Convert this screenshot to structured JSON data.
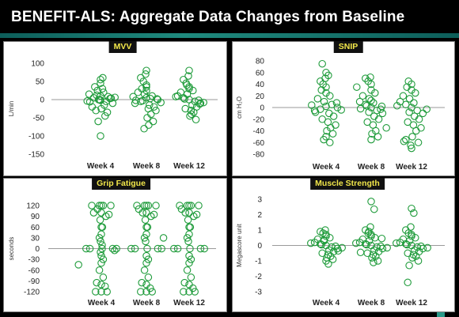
{
  "page_title": "BENEFIT-ALS: Aggregate Data Changes from Baseline",
  "colors": {
    "marker": "#1e9b3a",
    "panel_title_text": "#f1e64a",
    "header_bg": "#000000"
  },
  "chart_data": [
    {
      "type": "scatter",
      "title": "MVV",
      "ylabel": "L/min",
      "ylim": [
        -150,
        100
      ],
      "yticks": [
        100,
        50,
        0,
        -50,
        -100,
        -150
      ],
      "categories": [
        "Week 4",
        "Week 8",
        "Week 12"
      ],
      "series": [
        {
          "week": "Week 4",
          "x": [
            0.0,
            -0.18,
            0.15,
            -0.3,
            0.32,
            -0.05,
            0.08,
            -0.22,
            0.2,
            0.1,
            -0.1,
            0.0,
            0.05,
            -0.12,
            0.25,
            -0.35,
            0.38,
            0.0,
            0.12,
            -0.08,
            0.02,
            -0.15,
            0.18,
            -0.02,
            0.0,
            0.06,
            -0.06,
            0.28,
            -0.28,
            0.0
          ],
          "y": [
            10,
            5,
            -5,
            15,
            -10,
            0,
            20,
            -20,
            8,
            -15,
            12,
            -2,
            30,
            -30,
            3,
            -4,
            6,
            45,
            -45,
            25,
            -25,
            35,
            -35,
            0,
            55,
            60,
            -60,
            4,
            -6,
            -100
          ]
        },
        {
          "week": "Week 8",
          "x": [
            0.0,
            -0.15,
            0.15,
            -0.3,
            0.3,
            -0.05,
            0.08,
            -0.22,
            0.2,
            0.1,
            -0.1,
            0.0,
            0.05,
            -0.12,
            0.25,
            -0.35,
            0.38,
            0.0,
            0.12,
            -0.08,
            0.02,
            -0.15,
            0.18,
            -0.02,
            0.0,
            0.06,
            -0.06,
            0.28,
            -0.28,
            0.0
          ],
          "y": [
            5,
            -5,
            10,
            -10,
            0,
            15,
            -15,
            20,
            -20,
            3,
            -3,
            25,
            -25,
            30,
            -30,
            8,
            -8,
            40,
            -40,
            50,
            -50,
            60,
            -60,
            70,
            80,
            -70,
            -80,
            2,
            -2,
            35
          ]
        },
        {
          "week": "Week 12",
          "x": [
            0.0,
            -0.15,
            0.15,
            -0.3,
            0.3,
            -0.05,
            0.08,
            -0.22,
            0.2,
            0.1,
            -0.1,
            0.0,
            0.05,
            -0.12,
            0.25,
            -0.35,
            0.38,
            0.0,
            0.12,
            -0.08,
            0.02,
            -0.15,
            0.18,
            -0.02,
            0.0,
            0.06,
            -0.06,
            0.28
          ],
          "y": [
            0,
            5,
            -5,
            10,
            -10,
            15,
            -15,
            20,
            -20,
            25,
            -25,
            30,
            -30,
            2,
            -2,
            8,
            -8,
            35,
            -35,
            45,
            -45,
            55,
            -55,
            65,
            80,
            -40,
            40,
            -12
          ]
        }
      ],
      "grid": false
    },
    {
      "type": "scatter",
      "title": "SNIP",
      "ylabel": "cm H₂O",
      "ylim": [
        -80,
        80
      ],
      "yticks": [
        80,
        60,
        40,
        20,
        0,
        -20,
        -40,
        -60,
        -80
      ],
      "categories": [
        "Week 4",
        "Week 8",
        "Week 12"
      ],
      "series": [
        {
          "week": "Week 4",
          "x": [
            0.0,
            -0.15,
            0.15,
            -0.3,
            0.3,
            -0.05,
            0.08,
            -0.22,
            0.2,
            0.1,
            -0.1,
            0.0,
            0.05,
            -0.12,
            0.25,
            -0.38,
            0.4,
            0.0,
            0.12,
            -0.08,
            0.02,
            -0.15,
            0.18,
            -0.02,
            0.0,
            0.06,
            -0.06,
            0.28,
            -0.28,
            0.0,
            0.1,
            -0.1
          ],
          "y": [
            2,
            -3,
            5,
            -5,
            0,
            10,
            -10,
            15,
            -15,
            20,
            -20,
            25,
            -25,
            30,
            -30,
            4,
            -4,
            35,
            -35,
            40,
            -40,
            45,
            -45,
            50,
            -50,
            55,
            -55,
            8,
            -8,
            60,
            -60,
            75
          ]
        },
        {
          "week": "Week 8",
          "x": [
            0.0,
            -0.15,
            0.15,
            -0.3,
            0.3,
            -0.05,
            0.08,
            -0.22,
            0.2,
            0.1,
            -0.1,
            0.0,
            0.05,
            -0.12,
            0.25,
            -0.38,
            0.4,
            0.0,
            0.12,
            -0.08,
            0.02,
            -0.15,
            0.18,
            -0.02,
            0.0,
            0.06,
            -0.06,
            0.28,
            -0.28,
            0.0
          ],
          "y": [
            0,
            5,
            -5,
            10,
            -10,
            15,
            -15,
            20,
            -20,
            25,
            -25,
            30,
            -30,
            3,
            -3,
            35,
            -35,
            40,
            -40,
            45,
            -45,
            50,
            -50,
            52,
            -55,
            8,
            -8,
            2,
            -2,
            12
          ]
        },
        {
          "week": "Week 12",
          "x": [
            0.0,
            -0.15,
            0.15,
            -0.3,
            0.3,
            -0.05,
            0.08,
            -0.22,
            0.2,
            0.1,
            -0.1,
            0.0,
            0.05,
            -0.12,
            0.25,
            -0.38,
            0.4,
            0.0,
            0.12,
            -0.08,
            0.02,
            -0.15,
            0.18,
            -0.02,
            0.0,
            0.06,
            -0.06,
            -0.2
          ],
          "y": [
            0,
            5,
            -5,
            10,
            -10,
            15,
            -15,
            20,
            -20,
            25,
            -25,
            30,
            -30,
            35,
            -35,
            3,
            -3,
            40,
            -40,
            45,
            -50,
            -55,
            -60,
            -65,
            -70,
            8,
            -8,
            -58
          ]
        }
      ],
      "grid": false
    },
    {
      "type": "scatter",
      "title": "Grip Fatigue",
      "ylabel": "seconds",
      "ylim": [
        -120,
        120
      ],
      "yticks": [
        120,
        90,
        60,
        30,
        0,
        -30,
        -60,
        -90,
        -120
      ],
      "categories": [
        "Week 4",
        "Week 8",
        "Week 12"
      ],
      "series": [
        {
          "week": "Week 4",
          "x": [
            0.0,
            -0.05,
            0.05,
            0.0,
            -0.03,
            0.03,
            0.0,
            -0.02,
            0.02,
            0.0,
            0.0,
            -0.05,
            0.05,
            0.0,
            -0.3,
            0.3,
            -0.4,
            0.4,
            -0.25,
            0.25,
            -0.15,
            0.15,
            -0.6,
            0.0,
            -0.2,
            0.2,
            -0.1,
            0.1,
            -0.12,
            0.12,
            0.0,
            0.05,
            -0.05,
            0.02,
            -0.02,
            0.35
          ],
          "y": [
            120,
            120,
            120,
            100,
            80,
            60,
            40,
            20,
            0,
            -20,
            -40,
            -60,
            -80,
            -100,
            0,
            0,
            0,
            0,
            120,
            120,
            -120,
            -120,
            -45,
            -120,
            100,
            95,
            110,
            -105,
            -95,
            90,
            60,
            -30,
            30,
            10,
            -10,
            -5
          ]
        },
        {
          "week": "Week 8",
          "x": [
            0.0,
            -0.05,
            0.05,
            0.0,
            -0.03,
            0.03,
            0.0,
            -0.02,
            0.02,
            0.0,
            0.0,
            -0.05,
            0.05,
            0.0,
            -0.3,
            0.3,
            -0.4,
            0.4,
            -0.25,
            0.25,
            -0.15,
            0.15,
            0.0,
            -0.2,
            0.2,
            -0.1,
            0.1,
            -0.12,
            0.12,
            0.0,
            0.05,
            -0.05,
            0.45
          ],
          "y": [
            120,
            120,
            120,
            100,
            80,
            60,
            40,
            20,
            0,
            -20,
            -40,
            -60,
            -80,
            -100,
            0,
            0,
            0,
            0,
            120,
            120,
            -120,
            -120,
            -120,
            110,
            95,
            100,
            -110,
            -95,
            90,
            60,
            -30,
            30,
            30
          ]
        },
        {
          "week": "Week 12",
          "x": [
            0.0,
            -0.05,
            0.05,
            0.0,
            -0.03,
            0.03,
            0.0,
            -0.02,
            0.02,
            0.0,
            0.0,
            -0.05,
            0.05,
            0.0,
            -0.3,
            0.3,
            -0.4,
            0.4,
            -0.25,
            0.25,
            -0.15,
            0.15,
            0.0,
            -0.2,
            0.2,
            -0.1,
            0.1,
            -0.12,
            0.12,
            0.0,
            0.05,
            -0.05
          ],
          "y": [
            120,
            120,
            120,
            100,
            80,
            60,
            40,
            20,
            0,
            -20,
            -40,
            -60,
            -80,
            -100,
            0,
            0,
            0,
            0,
            120,
            120,
            -120,
            -120,
            -120,
            110,
            95,
            100,
            -110,
            -95,
            90,
            60,
            -30,
            30
          ]
        }
      ],
      "grid": false
    },
    {
      "type": "scatter",
      "title": "Muscle Strength",
      "ylabel": "Megascore unit",
      "ylim": [
        -3,
        3
      ],
      "yticks": [
        3,
        2,
        1,
        0,
        -1,
        -2,
        -3
      ],
      "categories": [
        "Week 4",
        "Week 8",
        "Week 12"
      ],
      "series": [
        {
          "week": "Week 4",
          "x": [
            0.0,
            -0.15,
            0.15,
            -0.3,
            0.3,
            -0.05,
            0.08,
            -0.22,
            0.2,
            0.1,
            -0.1,
            0.0,
            0.05,
            -0.12,
            0.25,
            -0.4,
            0.42,
            0.0,
            0.12,
            -0.08,
            0.02,
            -0.15,
            0.18,
            -0.02,
            0.0,
            0.06,
            -0.06,
            0.32
          ],
          "y": [
            0,
            0.1,
            -0.1,
            0.2,
            -0.2,
            0.3,
            -0.3,
            0.4,
            -0.4,
            0.5,
            -0.5,
            0.6,
            -0.6,
            0.05,
            -0.05,
            0.15,
            -0.15,
            0.7,
            -0.7,
            0.8,
            -0.8,
            0.9,
            -0.9,
            1.0,
            -1.0,
            -1.2,
            0.35,
            -0.35
          ]
        },
        {
          "week": "Week 8",
          "x": [
            0.0,
            -0.15,
            0.15,
            -0.3,
            0.3,
            -0.05,
            0.08,
            -0.22,
            0.2,
            0.1,
            -0.1,
            0.0,
            0.05,
            -0.12,
            0.25,
            -0.4,
            0.42,
            0.0,
            0.12,
            -0.08,
            0.02,
            -0.15,
            0.18,
            -0.02,
            0.0,
            0.06,
            -0.06,
            0.28,
            -0.28,
            0.08
          ],
          "y": [
            0,
            0.1,
            -0.1,
            0.2,
            -0.2,
            0.3,
            -0.3,
            0.4,
            -0.4,
            0.5,
            -0.5,
            0.6,
            -0.6,
            0.05,
            -0.05,
            0.15,
            -0.15,
            0.7,
            -0.7,
            0.8,
            -0.8,
            1.0,
            -1.0,
            1.2,
            2.85,
            -1.1,
            0.9,
            0.45,
            -0.45,
            2.35
          ]
        },
        {
          "week": "Week 12",
          "x": [
            0.0,
            -0.15,
            0.15,
            -0.3,
            0.3,
            -0.05,
            0.08,
            -0.22,
            0.2,
            0.1,
            -0.1,
            0.0,
            0.05,
            -0.12,
            0.25,
            -0.4,
            0.42,
            0.0,
            0.12,
            -0.08,
            0.02,
            -0.15,
            0.18,
            -0.02,
            0.0,
            0.06,
            -0.06,
            -0.1
          ],
          "y": [
            0,
            0.1,
            -0.1,
            0.2,
            -0.2,
            0.3,
            -0.3,
            0.4,
            -0.4,
            0.5,
            -0.5,
            0.6,
            -0.6,
            0.05,
            -0.05,
            0.15,
            -0.15,
            0.7,
            -0.7,
            0.8,
            -0.8,
            1.0,
            -1.0,
            1.2,
            2.4,
            2.1,
            -1.3,
            -2.4
          ]
        }
      ],
      "grid": false
    }
  ]
}
